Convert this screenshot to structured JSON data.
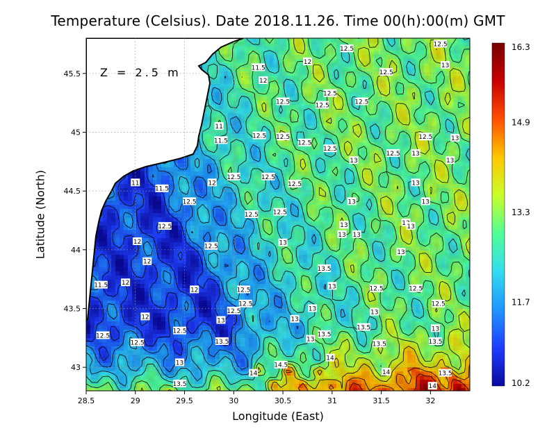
{
  "title": "Temperature (Celsius). Date 2018.11.26. Time 00(h):00(m) GMT",
  "xlabel": "Longitude (East)",
  "ylabel": "Latitude (North)",
  "depth_label": "Z = 2.5 m",
  "x_ticks": [
    "28.5",
    "29",
    "29.5",
    "30",
    "30.5",
    "31",
    "31.5",
    "32"
  ],
  "y_ticks": [
    "43",
    "43.5",
    "44",
    "44.5",
    "45",
    "45.5"
  ],
  "colorbar": {
    "min": 10.2,
    "max": 16.3,
    "tick_labels": [
      "16.3",
      "14.9",
      "13.3",
      "11.7",
      "10.2"
    ],
    "colors": [
      "#0a0aa0",
      "#1e3cff",
      "#1e96ff",
      "#32dcf0",
      "#50ff96",
      "#c8ff28",
      "#ffc800",
      "#ff5000",
      "#c80000",
      "#780000"
    ]
  },
  "chart_data": {
    "type": "heatmap",
    "title": "Temperature (Celsius). Date 2018.11.26. Time 00(h):00(m) GMT",
    "xlabel": "Longitude (East)",
    "ylabel": "Latitude (North)",
    "xlim": [
      28.5,
      32.4
    ],
    "ylim": [
      42.8,
      45.8
    ],
    "value_range": [
      10.2,
      16.3
    ],
    "grid": true,
    "colorbar": "right",
    "contour_labels": [
      {
        "lon": 31.15,
        "lat": 45.71,
        "v": "12.5"
      },
      {
        "lon": 32.1,
        "lat": 45.75,
        "v": "12.5"
      },
      {
        "lon": 30.75,
        "lat": 45.6,
        "v": "12"
      },
      {
        "lon": 30.25,
        "lat": 45.55,
        "v": "11.5"
      },
      {
        "lon": 32.15,
        "lat": 45.57,
        "v": "13"
      },
      {
        "lon": 31.55,
        "lat": 45.51,
        "v": "12.5"
      },
      {
        "lon": 30.3,
        "lat": 45.44,
        "v": "12"
      },
      {
        "lon": 30.98,
        "lat": 45.33,
        "v": "12.5"
      },
      {
        "lon": 30.5,
        "lat": 45.26,
        "v": "12.5"
      },
      {
        "lon": 31.3,
        "lat": 45.26,
        "v": "12.5"
      },
      {
        "lon": 30.9,
        "lat": 45.23,
        "v": "12.5"
      },
      {
        "lon": 29.85,
        "lat": 45.05,
        "v": "11"
      },
      {
        "lon": 29.87,
        "lat": 44.93,
        "v": "11.5"
      },
      {
        "lon": 30.26,
        "lat": 44.97,
        "v": "12.5"
      },
      {
        "lon": 30.5,
        "lat": 44.96,
        "v": "12.5"
      },
      {
        "lon": 30.72,
        "lat": 44.91,
        "v": "12.5"
      },
      {
        "lon": 30.98,
        "lat": 44.86,
        "v": "12.5"
      },
      {
        "lon": 31.62,
        "lat": 44.82,
        "v": "12.5"
      },
      {
        "lon": 31.95,
        "lat": 44.96,
        "v": "12.5"
      },
      {
        "lon": 32.25,
        "lat": 44.95,
        "v": "13"
      },
      {
        "lon": 31.85,
        "lat": 44.82,
        "v": "13"
      },
      {
        "lon": 31.22,
        "lat": 44.76,
        "v": "13"
      },
      {
        "lon": 32.2,
        "lat": 44.76,
        "v": "13"
      },
      {
        "lon": 30.0,
        "lat": 44.62,
        "v": "12.5"
      },
      {
        "lon": 30.35,
        "lat": 44.62,
        "v": "12.5"
      },
      {
        "lon": 30.62,
        "lat": 44.56,
        "v": "12.5"
      },
      {
        "lon": 29.78,
        "lat": 44.57,
        "v": "12"
      },
      {
        "lon": 29.0,
        "lat": 44.57,
        "v": "11"
      },
      {
        "lon": 29.27,
        "lat": 44.52,
        "v": "11.5"
      },
      {
        "lon": 31.85,
        "lat": 44.57,
        "v": "13"
      },
      {
        "lon": 29.55,
        "lat": 44.41,
        "v": "12.5"
      },
      {
        "lon": 31.2,
        "lat": 44.41,
        "v": "13"
      },
      {
        "lon": 31.95,
        "lat": 44.41,
        "v": "13"
      },
      {
        "lon": 30.18,
        "lat": 44.3,
        "v": "12.5"
      },
      {
        "lon": 30.47,
        "lat": 44.32,
        "v": "12.5"
      },
      {
        "lon": 29.3,
        "lat": 44.2,
        "v": "12.5"
      },
      {
        "lon": 31.12,
        "lat": 44.21,
        "v": "13"
      },
      {
        "lon": 31.75,
        "lat": 44.23,
        "v": "13"
      },
      {
        "lon": 31.8,
        "lat": 44.2,
        "v": "13"
      },
      {
        "lon": 31.1,
        "lat": 44.13,
        "v": "13"
      },
      {
        "lon": 31.25,
        "lat": 44.13,
        "v": "13"
      },
      {
        "lon": 29.02,
        "lat": 44.07,
        "v": "12"
      },
      {
        "lon": 29.77,
        "lat": 44.03,
        "v": "12.5"
      },
      {
        "lon": 30.5,
        "lat": 44.06,
        "v": "13"
      },
      {
        "lon": 31.7,
        "lat": 43.98,
        "v": "13"
      },
      {
        "lon": 29.12,
        "lat": 43.9,
        "v": "12"
      },
      {
        "lon": 30.92,
        "lat": 43.84,
        "v": "13.5"
      },
      {
        "lon": 28.65,
        "lat": 43.7,
        "v": "11.5"
      },
      {
        "lon": 28.9,
        "lat": 43.72,
        "v": "12"
      },
      {
        "lon": 29.6,
        "lat": 43.66,
        "v": "12"
      },
      {
        "lon": 30.1,
        "lat": 43.66,
        "v": "12.5"
      },
      {
        "lon": 31.0,
        "lat": 43.69,
        "v": "13"
      },
      {
        "lon": 31.45,
        "lat": 43.67,
        "v": "12.5"
      },
      {
        "lon": 31.85,
        "lat": 43.67,
        "v": "12.5"
      },
      {
        "lon": 30.12,
        "lat": 43.54,
        "v": "12.5"
      },
      {
        "lon": 30.0,
        "lat": 43.48,
        "v": "12.5"
      },
      {
        "lon": 30.8,
        "lat": 43.5,
        "v": "13"
      },
      {
        "lon": 31.43,
        "lat": 43.47,
        "v": "13"
      },
      {
        "lon": 32.08,
        "lat": 43.54,
        "v": "12.5"
      },
      {
        "lon": 29.1,
        "lat": 43.43,
        "v": "12"
      },
      {
        "lon": 29.87,
        "lat": 43.4,
        "v": "13"
      },
      {
        "lon": 30.62,
        "lat": 43.41,
        "v": "13"
      },
      {
        "lon": 31.32,
        "lat": 43.34,
        "v": "13.5"
      },
      {
        "lon": 29.45,
        "lat": 43.31,
        "v": "12.5"
      },
      {
        "lon": 28.67,
        "lat": 43.27,
        "v": "12.5"
      },
      {
        "lon": 32.05,
        "lat": 43.33,
        "v": "13"
      },
      {
        "lon": 30.92,
        "lat": 43.28,
        "v": "13.5"
      },
      {
        "lon": 30.78,
        "lat": 43.24,
        "v": "13"
      },
      {
        "lon": 29.02,
        "lat": 43.21,
        "v": "12.5"
      },
      {
        "lon": 29.88,
        "lat": 43.22,
        "v": "13.5"
      },
      {
        "lon": 31.48,
        "lat": 43.2,
        "v": "13.5"
      },
      {
        "lon": 32.05,
        "lat": 43.22,
        "v": "13.5"
      },
      {
        "lon": 30.98,
        "lat": 43.08,
        "v": "14"
      },
      {
        "lon": 29.45,
        "lat": 43.04,
        "v": "13"
      },
      {
        "lon": 30.48,
        "lat": 43.02,
        "v": "14.5"
      },
      {
        "lon": 30.2,
        "lat": 42.95,
        "v": "14"
      },
      {
        "lon": 31.55,
        "lat": 42.96,
        "v": "14"
      },
      {
        "lon": 32.15,
        "lat": 42.95,
        "v": "13.5"
      },
      {
        "lon": 29.45,
        "lat": 42.86,
        "v": "13.5"
      },
      {
        "lon": 32.02,
        "lat": 42.84,
        "v": "14"
      }
    ]
  }
}
